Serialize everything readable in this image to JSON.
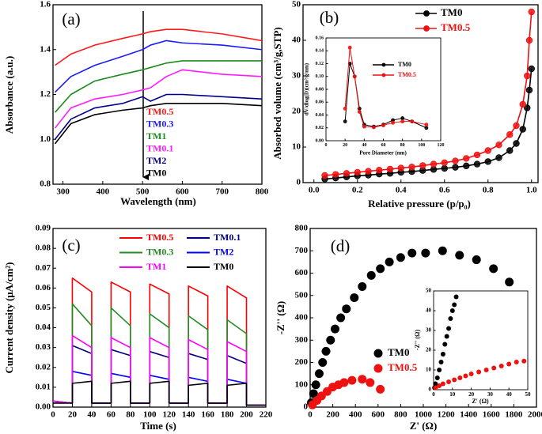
{
  "chart_data": [
    {
      "type": "line",
      "panel_label": "(a)",
      "x_label": "Wavelength (nm)",
      "y_label": "Absorbance (a.u.)",
      "x": [
        280,
        320,
        380,
        450,
        500,
        520,
        560,
        600,
        700,
        800
      ],
      "xlim": [
        275,
        800
      ],
      "xticks": [
        300,
        400,
        500,
        600,
        700,
        800
      ],
      "ylim": [
        0.8,
        1.6
      ],
      "yticks": [
        0.8,
        {
          "value": 1,
          "label": "1.0"
        },
        1.2,
        1.4,
        1.6
      ],
      "series": [
        {
          "name": "TM0.5",
          "color": "#ff1a1a",
          "values": [
            1.33,
            1.38,
            1.42,
            1.45,
            1.47,
            1.48,
            1.49,
            1.49,
            1.47,
            1.44
          ]
        },
        {
          "name": "TM0.3",
          "color": "#1a1aff",
          "values": [
            1.21,
            1.28,
            1.33,
            1.37,
            1.4,
            1.42,
            1.44,
            1.43,
            1.42,
            1.4
          ]
        },
        {
          "name": "TM1",
          "color": "#1a8c1a",
          "values": [
            1.12,
            1.2,
            1.26,
            1.29,
            1.31,
            1.32,
            1.34,
            1.35,
            1.35,
            1.35
          ]
        },
        {
          "name": "TM0.1",
          "color": "#ff1aff",
          "values": [
            1.05,
            1.14,
            1.18,
            1.2,
            1.22,
            1.23,
            1.28,
            1.31,
            1.29,
            1.28
          ]
        },
        {
          "name": "TM2",
          "color": "#00008b",
          "values": [
            1.0,
            1.09,
            1.14,
            1.16,
            1.19,
            1.17,
            1.2,
            1.2,
            1.19,
            1.18
          ]
        },
        {
          "name": "TM0",
          "color": "#000000",
          "values": [
            0.98,
            1.07,
            1.11,
            1.13,
            1.14,
            1.15,
            1.16,
            1.16,
            1.16,
            1.15
          ]
        }
      ]
    },
    {
      "type": "line",
      "markers": true,
      "panel_label": "(b)",
      "x_label": "Relative pressure (p/p₀)",
      "y_label": "Absorbed volume (cm³/g,STP)",
      "x": [
        0.05,
        0.1,
        0.15,
        0.2,
        0.25,
        0.3,
        0.35,
        0.4,
        0.45,
        0.5,
        0.55,
        0.6,
        0.65,
        0.7,
        0.75,
        0.8,
        0.85,
        0.9,
        0.93,
        0.96,
        0.98,
        0.99,
        1.0
      ],
      "xlim": [
        -0.05,
        1.03
      ],
      "xticks": [
        {
          "value": 0,
          "label": "0.0"
        },
        0.2,
        0.4,
        0.6,
        0.8,
        {
          "value": 1,
          "label": "1.0"
        }
      ],
      "ylim": [
        0,
        50
      ],
      "yticks": [
        0,
        10,
        20,
        30,
        40,
        50
      ],
      "series": [
        {
          "name": "TM0",
          "color": "#000000",
          "values": [
            1,
            1.3,
            1.6,
            1.9,
            2.1,
            2.4,
            2.6,
            2.9,
            3.1,
            3.4,
            3.7,
            4,
            4.3,
            4.7,
            5.2,
            5.9,
            7,
            9,
            11,
            15,
            21,
            26,
            32
          ]
        },
        {
          "name": "TM0.5",
          "color": "#ee1111",
          "values": [
            2,
            2.3,
            2.6,
            2.9,
            3.2,
            3.5,
            3.8,
            4.1,
            4.4,
            4.8,
            5.2,
            5.6,
            6.1,
            6.8,
            7.8,
            9,
            10.6,
            13.5,
            16,
            22,
            30,
            40,
            48
          ]
        }
      ]
    },
    {
      "type": "line",
      "markers": true,
      "x_label": "Pore Diameter (nm)",
      "y_label": "dV/dlog(D)(cm³/g/nm)",
      "x": [
        20,
        25,
        30,
        35,
        40,
        50,
        60,
        70,
        80,
        90,
        105
      ],
      "xlim": [
        0,
        120
      ],
      "xticks": [
        0,
        20,
        40,
        60,
        80,
        100,
        120
      ],
      "ylim": [
        0,
        0.16
      ],
      "yticks": [
        {
          "value": 0,
          "label": "0.00"
        },
        0.02,
        0.04,
        0.06,
        0.08,
        {
          "value": 0.1,
          "label": "0.10"
        },
        0.12,
        0.14,
        0.16
      ],
      "series": [
        {
          "name": "TM0",
          "color": "#000000",
          "values": [
            0.03,
            0.12,
            0.1,
            0.05,
            0.025,
            0.022,
            0.025,
            0.032,
            0.035,
            0.03,
            0.02
          ]
        },
        {
          "name": "TM0.5",
          "color": "#ee1111",
          "values": [
            0.05,
            0.145,
            0.1,
            0.045,
            0.022,
            0.021,
            0.024,
            0.028,
            0.03,
            0.03,
            0.025
          ]
        }
      ]
    },
    {
      "type": "line",
      "panel_label": "(c)",
      "x_label": "Time (s)",
      "y_label": "Current density (μA/cm²)",
      "x": [
        0,
        20,
        20,
        40,
        40,
        60,
        60,
        80,
        80,
        100,
        100,
        120,
        120,
        140,
        140,
        160,
        160,
        180,
        180,
        200,
        200,
        220
      ],
      "xlim": [
        0,
        220
      ],
      "xticks": [
        0,
        20,
        40,
        60,
        80,
        100,
        120,
        140,
        160,
        180,
        200,
        220
      ],
      "ylim": [
        0,
        0.09
      ],
      "yticks": [
        {
          "value": 0,
          "label": "0.00"
        },
        0.01,
        0.02,
        0.03,
        0.04,
        0.05,
        0.06,
        0.07,
        0.08,
        0.09
      ],
      "series": [
        {
          "name": "TM0.5",
          "color": "#ff0000",
          "values": [
            0.003,
            0.002,
            0.065,
            0.058,
            0.002,
            0.002,
            0.063,
            0.058,
            0.002,
            0.002,
            0.062,
            0.057,
            0.002,
            0.002,
            0.061,
            0.056,
            0.002,
            0.002,
            0.061,
            0.055,
            0.001,
            0.001
          ]
        },
        {
          "name": "TM0.1",
          "color": "#000080",
          "values": [
            0.003,
            0.002,
            0.031,
            0.027,
            0.002,
            0.002,
            0.029,
            0.026,
            0.002,
            0.002,
            0.028,
            0.025,
            0.002,
            0.002,
            0.027,
            0.024,
            0.002,
            0.002,
            0.026,
            0.022,
            0.001,
            0.001
          ]
        },
        {
          "name": "TM0.3",
          "color": "#228b22",
          "values": [
            0.003,
            0.002,
            0.052,
            0.041,
            0.002,
            0.002,
            0.05,
            0.041,
            0.002,
            0.002,
            0.047,
            0.04,
            0.002,
            0.002,
            0.046,
            0.039,
            0.002,
            0.002,
            0.044,
            0.037,
            0.001,
            0.001
          ]
        },
        {
          "name": "TM2",
          "color": "#0000ff",
          "values": [
            0.003,
            0.002,
            0.018,
            0.016,
            0.002,
            0.002,
            0.017,
            0.015,
            0.002,
            0.002,
            0.016,
            0.014,
            0.002,
            0.002,
            0.015,
            0.013,
            0.002,
            0.002,
            0.014,
            0.012,
            0.001,
            0.001
          ]
        },
        {
          "name": "TM1",
          "color": "#ff00ff",
          "values": [
            0.003,
            0.002,
            0.036,
            0.03,
            0.002,
            0.002,
            0.035,
            0.03,
            0.002,
            0.002,
            0.035,
            0.03,
            0.002,
            0.002,
            0.034,
            0.029,
            0.002,
            0.002,
            0.033,
            0.028,
            0.001,
            0.001
          ]
        },
        {
          "name": "TM0",
          "color": "#000000",
          "values": [
            0.002,
            0.002,
            0.012,
            0.013,
            0.002,
            0.002,
            0.012,
            0.013,
            0.002,
            0.002,
            0.012,
            0.013,
            0.002,
            0.002,
            0.011,
            0.012,
            0.002,
            0.002,
            0.011,
            0.012,
            0.001,
            0.001
          ]
        }
      ]
    },
    {
      "type": "scatter",
      "panel_label": "(d)",
      "x_label": "Z' (Ω)",
      "y_label": "-Z'' (Ω)",
      "xlim": [
        0,
        2000
      ],
      "xticks": [
        0,
        200,
        400,
        600,
        800,
        1000,
        1200,
        1400,
        1600,
        1800,
        2000
      ],
      "ylim": [
        0,
        800
      ],
      "yticks": [
        0,
        100,
        200,
        300,
        400,
        500,
        600,
        700,
        800
      ],
      "series": [
        {
          "name": "TM0",
          "color": "#000000",
          "x": [
            10,
            30,
            50,
            80,
            110,
            140,
            180,
            220,
            270,
            320,
            390,
            460,
            540,
            620,
            700,
            800,
            900,
            1020,
            1170,
            1320,
            1470,
            1620,
            1760
          ],
          "values": [
            20,
            60,
            100,
            150,
            200,
            250,
            300,
            350,
            400,
            440,
            490,
            540,
            590,
            620,
            650,
            670,
            690,
            690,
            700,
            680,
            660,
            620,
            560
          ]
        },
        {
          "name": "TM0.5",
          "color": "#ee1111",
          "x": [
            20,
            60,
            100,
            150,
            200,
            250,
            300,
            370,
            460,
            530,
            620
          ],
          "values": [
            10,
            30,
            50,
            70,
            90,
            100,
            110,
            120,
            125,
            110,
            80
          ]
        }
      ]
    },
    {
      "type": "scatter",
      "x_label": "Z' (Ω)",
      "y_label": "-Z'' (Ω)",
      "xlim": [
        0,
        50
      ],
      "xticks": [
        0,
        10,
        20,
        30,
        40,
        50
      ],
      "ylim": [
        0,
        50
      ],
      "yticks": [
        0,
        10,
        20,
        30,
        40,
        50
      ],
      "series": [
        {
          "name": "TM0",
          "color": "#000000",
          "x": [
            0.5,
            1,
            2,
            3,
            4,
            5,
            6,
            7,
            8,
            9,
            10,
            11,
            12
          ],
          "values": [
            1,
            3,
            6,
            10,
            14,
            18,
            23,
            27,
            31,
            36,
            40,
            43,
            47
          ]
        },
        {
          "name": "TM0.5",
          "color": "#ee1111",
          "x": [
            1,
            3,
            5,
            8,
            11,
            14,
            17,
            20,
            24,
            28,
            32,
            36,
            40,
            44,
            48
          ],
          "values": [
            1,
            2,
            3,
            4,
            5,
            6,
            7,
            8,
            9,
            10,
            11,
            12,
            13,
            14,
            14.5
          ]
        }
      ]
    }
  ]
}
